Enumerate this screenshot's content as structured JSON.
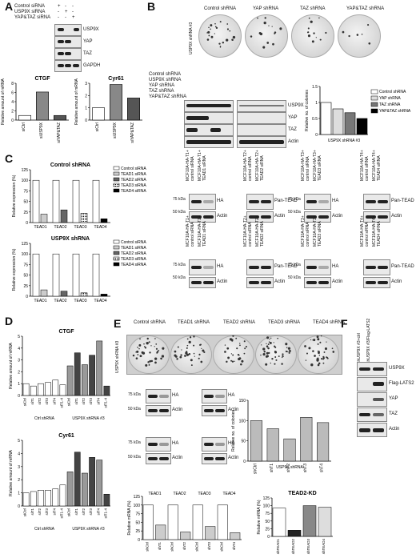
{
  "panels": {
    "a": "A",
    "b": "B",
    "c": "C",
    "d": "D",
    "e": "E",
    "f": "F"
  },
  "A": {
    "row_labels": [
      "Control siRNA",
      "USP9X siRNA",
      "YAP&TAZ siRNA"
    ],
    "signs": [
      [
        "+",
        "-",
        "-"
      ],
      [
        "-",
        "+",
        "-"
      ],
      [
        "-",
        "-",
        "+"
      ]
    ],
    "blots": [
      "USP9X",
      "YAP",
      "TAZ",
      "GAPDH"
    ],
    "ylabel": "Relative amount of mRNA"
  },
  "B": {
    "plate_labels": [
      "Control shRNA",
      "YAP shRNA",
      "TAZ shRNA",
      "YAP&TAZ shRNA"
    ],
    "side_label": "USP9X shRNA #3",
    "row_labels": [
      "Control shRNA",
      "USP9X shRNA",
      "YAP shRNA",
      "TAZ shRNA",
      "YAP&TAZ shRNA"
    ],
    "blots": [
      "USP9X",
      "YAP",
      "TAZ",
      "Actin"
    ],
    "legend": [
      "Control shRNA",
      "YAP shRNA",
      "TAZ shRNA",
      "YAP&TAZ shRNA"
    ],
    "ylabel": "Relative no. of colonies",
    "xlabel": "USP9X shRNA #3"
  },
  "C": {
    "title1": "Control shRNA",
    "title2": "USP9X shRNA",
    "legend": [
      "Control siRNA",
      "TEAD1 siRNA",
      "TEAD2 siRNA",
      "TEAD3 siRNA",
      "TEAD4 siRNA"
    ],
    "ylabel": "Relative expression (%)",
    "blot_labels": [
      "HA",
      "Actin",
      "Pan-TEAD",
      "Actin",
      "HA",
      "Actin",
      "Pan-TEAD",
      "Actin",
      "HA",
      "Actin",
      "Pan-TEAD",
      "Actin",
      "HA",
      "Actin",
      "Pan-TEAD",
      "Actin"
    ],
    "kda75": "75 kDa",
    "kda50": "50 kDa",
    "lane_top": [
      "MCF10A-HA-T1+",
      "MCF10A-HA-T1+",
      "MCF10A-HA-T2+",
      "MCF10A-HA-T2+",
      "MCF10A-HA-T3+",
      "MCF10A-HA-T3+",
      "MCF10A-HA-T4+",
      "MCF10A-HA-T4+"
    ],
    "lane_bot": [
      "control siRNA",
      "TEAD1 siRNA",
      "control siRNA",
      "TEAD2 siRNA",
      "control siRNA",
      "TEAD3 siRNA",
      "control siRNA",
      "TEAD4 siRNA"
    ]
  },
  "D": {
    "title1": "CTGF",
    "title2": "Cyr61",
    "ylabel": "Relative amount of mRNA",
    "group1": "Ctrl shRNA",
    "group2": "USP9X shRNA #3"
  },
  "E": {
    "plate_labels": [
      "Control shRNA",
      "TEAD1 shRNA",
      "TEAD2 shRNA",
      "TEAD3 shRNA",
      "TEAD4 shRNA"
    ],
    "side_label": "USP9X shRNA #3",
    "blot_labels": [
      "HA",
      "Actin",
      "HA",
      "Actin",
      "HA",
      "Actin",
      "HA",
      "Actin"
    ],
    "kda75": "75 kDa",
    "kda50": "50 kDa",
    "colonies_ylabel": "Relative no. of colonies",
    "colonies_xlabel": "USP9X shRNA",
    "bottom_ylabel": "Relative mRNA (%)",
    "tead2kd_title": "TEAD2-KD",
    "tead2kd_ylabel": "Relative mRNA (%)"
  },
  "F": {
    "lanes": [
      "shUSP9X #3+ctrl",
      "shUSP9X #3/Flag-LATS2"
    ],
    "blots": [
      "USP9X",
      "Flag-LATS2",
      "YAP",
      "TAZ",
      "Actin"
    ]
  },
  "chart_data": [
    {
      "id": "A-CTGF",
      "type": "bar",
      "title": "CTGF",
      "ylabel": "Relative amount of mRNA",
      "categories": [
        "siCtrl",
        "siUSP9X",
        "siYAP&TAZ"
      ],
      "values": [
        1,
        6.1,
        1
      ],
      "ylim": [
        0,
        8
      ],
      "yticks": [
        0,
        2,
        4,
        6,
        8
      ]
    },
    {
      "id": "A-Cyr61",
      "type": "bar",
      "title": "Cyr61",
      "ylabel": "Relative amount of mRNA",
      "categories": [
        "siCtrl",
        "siUSP9X",
        "siYAP&TAZ"
      ],
      "values": [
        1,
        2.9,
        1.8
      ],
      "ylim": [
        0,
        3
      ],
      "yticks": [
        0,
        1,
        2,
        3
      ]
    },
    {
      "id": "B-colonies",
      "type": "bar",
      "ylabel": "Relative no. of colonies",
      "xlabel": "USP9X shRNA #3",
      "categories": [
        "Control shRNA",
        "YAP shRNA",
        "TAZ shRNA",
        "YAP&TAZ shRNA"
      ],
      "values": [
        1.0,
        0.8,
        0.68,
        0.5
      ],
      "ylim": [
        0,
        1.5
      ],
      "yticks": [
        0,
        0.5,
        1,
        1.5
      ]
    },
    {
      "id": "C-control",
      "type": "bar",
      "title": "Control shRNA",
      "ylabel": "Relative expression (%)",
      "categories": [
        "TEAD1",
        "TEAD2",
        "TEAD3",
        "TEAD4"
      ],
      "series": [
        {
          "name": "Control siRNA",
          "values": [
            100,
            100,
            100,
            100
          ]
        },
        {
          "name": "TEAD1 siRNA",
          "values": [
            20,
            null,
            null,
            null
          ]
        },
        {
          "name": "TEAD2 siRNA",
          "values": [
            null,
            30,
            null,
            null
          ]
        },
        {
          "name": "TEAD3 siRNA",
          "values": [
            null,
            null,
            22,
            null
          ]
        },
        {
          "name": "TEAD4 siRNA",
          "values": [
            null,
            null,
            null,
            9
          ]
        }
      ],
      "ylim": [
        0,
        125
      ],
      "yticks": [
        0,
        25,
        50,
        75,
        100,
        125
      ]
    },
    {
      "id": "C-usp9x",
      "type": "bar",
      "title": "USP9X shRNA",
      "ylabel": "Relative expression (%)",
      "categories": [
        "TEAD1",
        "TEAD2",
        "TEAD3",
        "TEAD4"
      ],
      "series": [
        {
          "name": "Control siRNA",
          "values": [
            100,
            100,
            100,
            100
          ]
        },
        {
          "name": "TEAD1 siRNA",
          "values": [
            15,
            null,
            null,
            null
          ]
        },
        {
          "name": "TEAD2 siRNA",
          "values": [
            null,
            12,
            null,
            null
          ]
        },
        {
          "name": "TEAD3 siRNA",
          "values": [
            null,
            null,
            8,
            null
          ]
        },
        {
          "name": "TEAD4 siRNA",
          "values": [
            null,
            null,
            null,
            5
          ]
        }
      ],
      "ylim": [
        0,
        125
      ],
      "yticks": [
        0,
        25,
        50,
        75,
        100,
        125
      ]
    },
    {
      "id": "D-CTGF",
      "type": "bar",
      "title": "CTGF",
      "ylabel": "Relative amount of mRNA",
      "categories": [
        "siCtrl",
        "siT1",
        "siT2",
        "siT3",
        "siT4",
        "siT1-4",
        "siCtrl",
        "siT1",
        "siT2",
        "siT3",
        "siT4",
        "siT1-4"
      ],
      "values": [
        1.0,
        0.8,
        1.0,
        1.1,
        1.3,
        0.9,
        2.5,
        3.6,
        2.6,
        3.4,
        4.6,
        0.8
      ],
      "ylim": [
        0,
        5
      ],
      "yticks": [
        0,
        1,
        2,
        3,
        4,
        5
      ]
    },
    {
      "id": "D-Cyr61",
      "type": "bar",
      "title": "Cyr61",
      "ylabel": "Relative amount of mRNA",
      "categories": [
        "siCtrl",
        "siT1",
        "siT2",
        "siT3",
        "siT4",
        "siT1-4",
        "siCtrl",
        "siT1",
        "siT2",
        "siT3",
        "siT4",
        "siT1-4"
      ],
      "values": [
        1.0,
        1.1,
        1.2,
        1.2,
        1.3,
        1.6,
        2.6,
        4.1,
        2.5,
        3.7,
        3.5,
        0.9
      ],
      "ylim": [
        0,
        5
      ],
      "yticks": [
        0,
        1,
        2,
        3,
        4,
        5
      ]
    },
    {
      "id": "E-colonies",
      "type": "bar",
      "ylabel": "Relative no. of colonies",
      "xlabel": "USP9X shRNA",
      "categories": [
        "shCtrl",
        "shT1",
        "shT2",
        "shT3",
        "shT4"
      ],
      "values": [
        100,
        80,
        55,
        108,
        95
      ],
      "ylim": [
        0,
        150
      ],
      "yticks": [
        0,
        50,
        100,
        150
      ]
    },
    {
      "id": "E-mRNA",
      "type": "bar",
      "ylabel": "Relative mRNA (%)",
      "groups": [
        "TEAD1",
        "TEAD2",
        "TEAD3",
        "TEAD4"
      ],
      "categories": [
        "shCtrl",
        "shT1",
        "shCtrl",
        "shT2",
        "shCtrl",
        "shT3",
        "shCtrl",
        "shT4"
      ],
      "values": [
        100,
        42,
        100,
        22,
        100,
        38,
        100,
        20
      ],
      "ylim": [
        0,
        125
      ],
      "yticks": [
        0,
        25,
        50,
        75,
        100,
        125
      ]
    },
    {
      "id": "E-TEAD2KD",
      "type": "bar",
      "title": "TEAD2-KD",
      "ylabel": "Relative mRNA (%)",
      "categories": [
        "shTEAD1",
        "shTEAD2",
        "shTEAD3",
        "shTEAD4"
      ],
      "values": [
        92,
        20,
        100,
        95
      ],
      "ylim": [
        0,
        125
      ],
      "yticks": [
        0,
        25,
        50,
        75,
        100,
        125
      ]
    }
  ]
}
